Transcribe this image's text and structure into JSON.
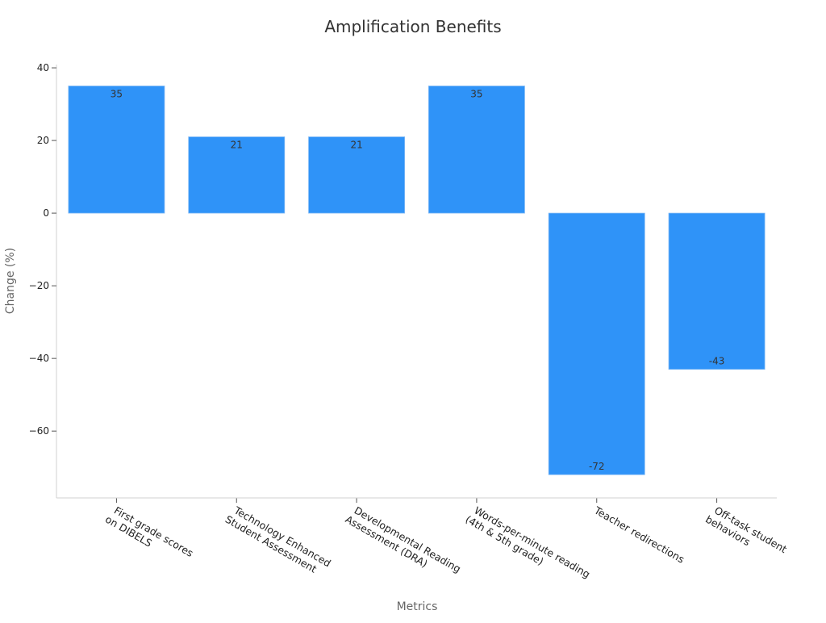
{
  "chart_data": {
    "type": "bar",
    "title": "Amplification Benefits",
    "xlabel": "Metrics",
    "ylabel": "Change (%)",
    "ylim": [
      -78.4,
      40.9
    ],
    "yticks": [
      40,
      20,
      0,
      -20,
      -40,
      -60
    ],
    "ytick_labels": [
      "40",
      "20",
      "0",
      "−20",
      "−40",
      "−60"
    ],
    "grid": false,
    "categories": [
      [
        "First grade scores",
        "on DIBELS"
      ],
      [
        "Technology Enhanced",
        "Student Assessment"
      ],
      [
        "Developmental Reading",
        "Assessment (DRA)"
      ],
      [
        "Words-per-minute reading",
        "(4th & 5th grade)"
      ],
      [
        "Teacher redirections"
      ],
      [
        "Off-task student",
        "behaviors"
      ]
    ],
    "values": [
      35,
      21,
      21,
      35,
      -72,
      -43
    ],
    "data_labels": [
      "35",
      "21",
      "21",
      "35",
      "-72",
      "-43"
    ],
    "bar_color": "#2f93f8"
  }
}
